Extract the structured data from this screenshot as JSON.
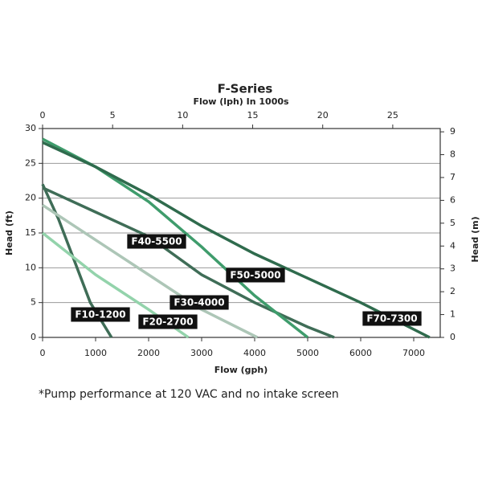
{
  "chart_data": {
    "type": "line",
    "title": "F-Series",
    "x_label": "Flow (gph)",
    "x2_label": "Flow (lph)  In 1000s",
    "y_label": "Head (ft)",
    "y2_label": "Head (m)",
    "note": "*Pump performance at 120 VAC and no intake screen",
    "xlim": [
      0,
      7500
    ],
    "xticks": [
      0,
      1000,
      2000,
      3000,
      4000,
      5000,
      6000,
      7000
    ],
    "x2lim": [
      0,
      28.39
    ],
    "x2ticks": [
      0,
      5,
      10,
      15,
      20,
      25
    ],
    "ylim": [
      0,
      30
    ],
    "yticks": [
      0,
      5,
      10,
      15,
      20,
      25,
      30
    ],
    "y2lim": [
      0,
      9.144
    ],
    "y2ticks": [
      0,
      1,
      2,
      3,
      4,
      5,
      6,
      7,
      8,
      9
    ],
    "grid": true,
    "series": [
      {
        "name": "F10-1200",
        "color": "#3f6d57",
        "x": [
          0,
          300,
          600,
          900,
          1300
        ],
        "values": [
          22,
          17,
          11,
          5,
          0
        ]
      },
      {
        "name": "F20-2700",
        "color": "#93d3ab",
        "x": [
          0,
          1000,
          2000,
          2750
        ],
        "values": [
          15,
          9,
          4,
          0
        ]
      },
      {
        "name": "F30-4000",
        "color": "#adc6b7",
        "x": [
          0,
          1000,
          2000,
          3000,
          4050
        ],
        "values": [
          19,
          14,
          9,
          4,
          0
        ]
      },
      {
        "name": "F40-5500",
        "color": "#3f6d57",
        "x": [
          0,
          1000,
          2000,
          3000,
          4000,
          5000,
          5500
        ],
        "values": [
          21.5,
          18,
          14.5,
          9,
          5,
          1.5,
          0
        ]
      },
      {
        "name": "F50-5000",
        "color": "#3f9c6c",
        "x": [
          0,
          1000,
          2000,
          3000,
          4000,
          5000
        ],
        "values": [
          28.5,
          24.5,
          19.5,
          13,
          6,
          0
        ]
      },
      {
        "name": "F70-7300",
        "color": "#2f6b4d",
        "x": [
          0,
          1000,
          2000,
          3000,
          4000,
          5000,
          6000,
          7300
        ],
        "values": [
          28,
          24.5,
          20.5,
          16,
          12,
          8.5,
          5,
          0
        ]
      }
    ]
  }
}
